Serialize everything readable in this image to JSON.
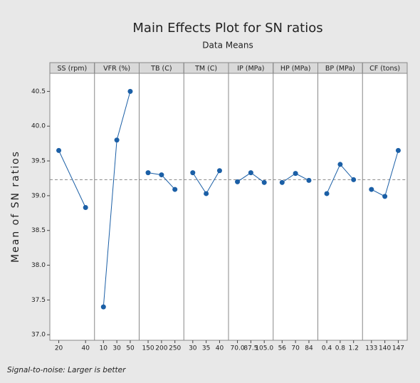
{
  "chart_data": {
    "type": "line",
    "title": "Main Effects Plot for SN ratios",
    "subtitle": "Data Means",
    "ylabel": "Mean of SN ratios",
    "footnote": "Signal-to-noise: Larger is better",
    "color": "#1b5fa6",
    "reference_line": 39.23,
    "ylim": [
      36.92,
      40.76
    ],
    "yticks": [
      {
        "value": 37,
        "label": "37.0"
      },
      37.5,
      {
        "value": 38,
        "label": "38.0"
      },
      38.5,
      {
        "value": 39,
        "label": "39.0"
      },
      39.5,
      {
        "value": 40,
        "label": "40.0"
      },
      40.5
    ],
    "panels": [
      {
        "name": "SS (rpm)",
        "categories": [
          "20",
          "40"
        ],
        "values": [
          39.65,
          38.83
        ]
      },
      {
        "name": "VFR (%)",
        "categories": [
          "10",
          "30",
          "50"
        ],
        "values": [
          37.4,
          39.8,
          40.5
        ]
      },
      {
        "name": "TB (C)",
        "categories": [
          "150",
          "200",
          "250"
        ],
        "values": [
          39.33,
          39.3,
          39.09
        ]
      },
      {
        "name": "TM (C)",
        "categories": [
          "30",
          "35",
          "40"
        ],
        "values": [
          39.33,
          39.03,
          39.36
        ]
      },
      {
        "name": "IP (MPa)",
        "categories": [
          "70.0",
          "87.5",
          "105.0"
        ],
        "values": [
          39.2,
          39.33,
          39.19
        ]
      },
      {
        "name": "HP (MPa)",
        "categories": [
          "56",
          "70",
          "84"
        ],
        "values": [
          39.19,
          39.32,
          39.22
        ]
      },
      {
        "name": "BP (MPa)",
        "categories": [
          "0.4",
          "0.8",
          "1.2"
        ],
        "values": [
          39.03,
          39.45,
          39.23
        ]
      },
      {
        "name": "CF (tons)",
        "categories": [
          "133",
          "140",
          "147"
        ],
        "values": [
          39.09,
          38.99,
          39.65
        ]
      }
    ]
  }
}
